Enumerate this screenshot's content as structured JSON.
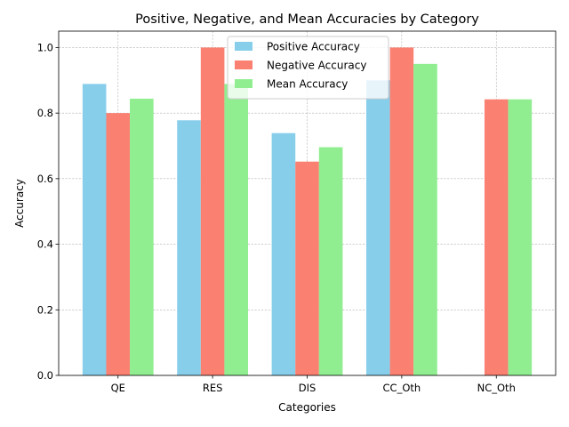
{
  "chart_data": {
    "type": "bar",
    "title": "Positive, Negative, and Mean Accuracies by Category",
    "xlabel": "Categories",
    "ylabel": "Accuracy",
    "categories": [
      "QE",
      "RES",
      "DIS",
      "CC_Oth",
      "NC_Oth"
    ],
    "ylim": [
      0,
      1.05
    ],
    "yticks": [
      0.0,
      0.2,
      0.4,
      0.6,
      0.8,
      1.0
    ],
    "ytick_labels": [
      "0.0",
      "0.2",
      "0.4",
      "0.6",
      "0.8",
      "1.0"
    ],
    "grid": true,
    "legend_position": "top-center",
    "series": [
      {
        "name": "Positive Accuracy",
        "color": "#87ceeb",
        "values": [
          0.889,
          0.778,
          0.739,
          0.9,
          0
        ]
      },
      {
        "name": "Negative Accuracy",
        "color": "#fa8072",
        "values": [
          0.8,
          1.0,
          0.652,
          1.0,
          0.842
        ]
      },
      {
        "name": "Mean Accuracy",
        "color": "#90ee90",
        "values": [
          0.844,
          0.889,
          0.696,
          0.95,
          0.842
        ]
      }
    ]
  }
}
